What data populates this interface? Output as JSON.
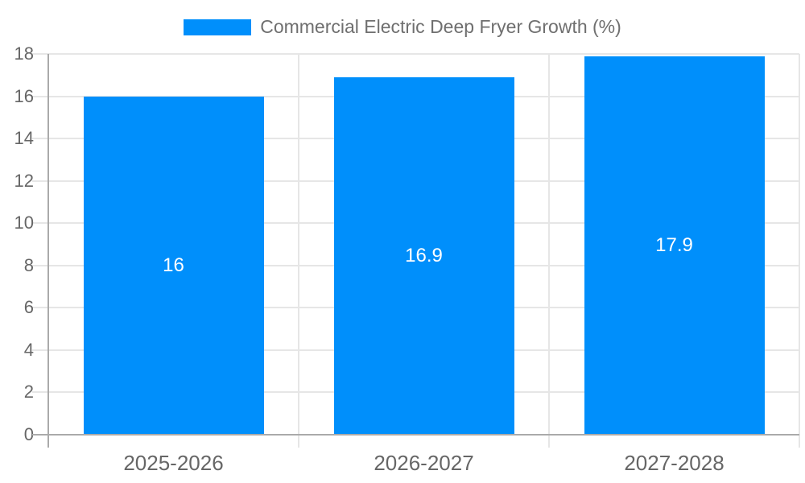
{
  "chart_data": {
    "type": "bar",
    "title": "Commercial Electric Deep Fryer Growth (%)",
    "categories": [
      "2025-2026",
      "2026-2027",
      "2027-2028"
    ],
    "values": [
      16,
      16.9,
      17.9
    ],
    "value_labels": [
      "16",
      "16.9",
      "17.9"
    ],
    "xlabel": "",
    "ylabel": "",
    "ylim": [
      0,
      18
    ],
    "yticks": [
      0,
      2,
      4,
      6,
      8,
      10,
      12,
      14,
      16,
      18
    ],
    "grid": true,
    "legend_position": "top",
    "colors": {
      "bar": "#008FFB",
      "value_label": "#ffffff",
      "grid": "#e6e6e6",
      "axis": "#aaaaaa",
      "tick_label": "#666666",
      "legend_text": "#6f6f6f",
      "background": "#ffffff"
    }
  },
  "legend": {
    "label": "Commercial Electric Deep Fryer Growth (%)"
  }
}
